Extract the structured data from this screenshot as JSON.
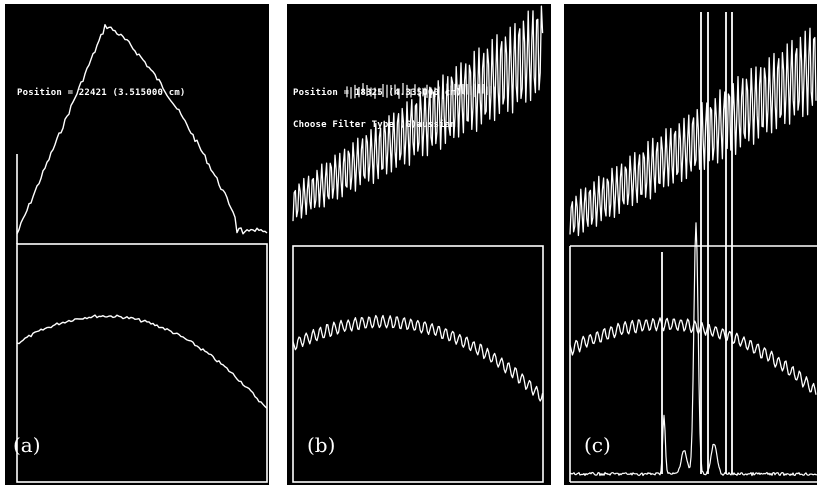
{
  "panels": [
    {
      "id": "a",
      "label": "(a)",
      "position_text": "Position = 22421 (3.515000 cm)",
      "upper_profile": "smooth-peak",
      "lower_profile": "smooth-broad",
      "line_color": "#ffffff"
    },
    {
      "id": "b",
      "label": "(b)",
      "position_text": "Position = 18325 (4.335000 cm).",
      "filter_text": "Choose Filter Type (G)aussian.",
      "upper_profile": "rising-fringes",
      "lower_profile": "fringed-hump",
      "line_color": "#ffffff"
    },
    {
      "id": "c",
      "label": "(c)",
      "upper_profile": "rising-fringes",
      "lower_profile": "fringed-hump-with-spectrum",
      "line_color": "#ffffff"
    }
  ],
  "colors": {
    "background": "#000000",
    "trace": "#ffffff",
    "page": "#ffffff"
  }
}
